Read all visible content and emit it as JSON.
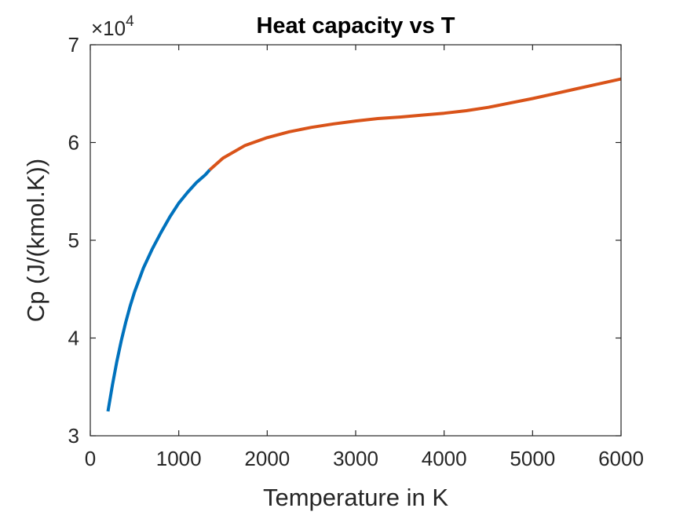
{
  "chart_data": {
    "type": "line",
    "title": "Heat capacity vs T",
    "xlabel": "Temperature in K",
    "ylabel": "Cp (J/(kmol.K))",
    "xlim": [
      0,
      6000
    ],
    "ylim": [
      30000,
      70000
    ],
    "x_ticks": [
      0,
      1000,
      2000,
      3000,
      4000,
      5000,
      6000
    ],
    "x_tick_labels": [
      "0",
      "1000",
      "2000",
      "3000",
      "4000",
      "5000",
      "6000"
    ],
    "y_ticks": [
      30000,
      40000,
      50000,
      60000,
      70000
    ],
    "y_tick_labels": [
      "3",
      "4",
      "5",
      "6",
      "7"
    ],
    "y_exponent": {
      "base": "×10",
      "power": "4"
    },
    "grid": false,
    "box": true,
    "series": [
      {
        "color": "#0072BD",
        "x": [
          200,
          250,
          300,
          350,
          400,
          450,
          500,
          600,
          700,
          800,
          900,
          1000,
          1100,
          1200,
          1300,
          1350
        ],
        "y": [
          32500,
          35200,
          37600,
          39700,
          41600,
          43250,
          44700,
          47150,
          49100,
          50800,
          52400,
          53800,
          54900,
          55900,
          56700,
          57200
        ]
      },
      {
        "color": "#D95319",
        "x": [
          1350,
          1500,
          1750,
          2000,
          2250,
          2500,
          2750,
          3000,
          3250,
          3500,
          3750,
          4000,
          4250,
          4500,
          4750,
          5000,
          5250,
          5500,
          5750,
          6000
        ],
        "y": [
          57200,
          58400,
          59700,
          60500,
          61100,
          61550,
          61900,
          62200,
          62450,
          62600,
          62800,
          63000,
          63250,
          63600,
          64050,
          64500,
          65000,
          65500,
          66000,
          66500
        ]
      }
    ]
  }
}
